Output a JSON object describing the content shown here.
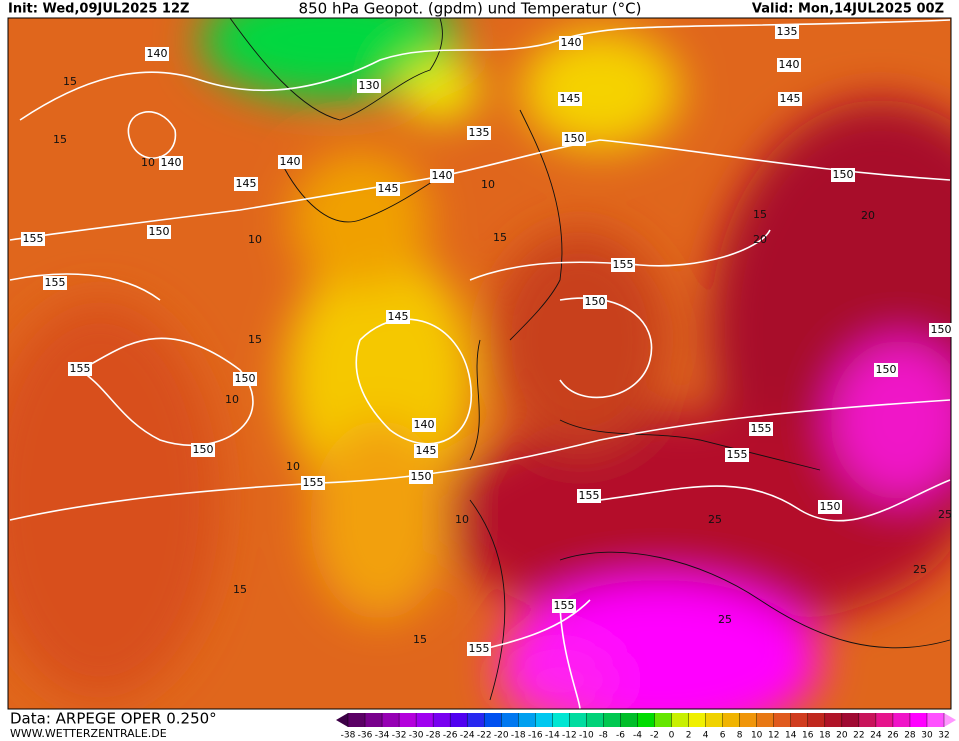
{
  "header": {
    "init": "Init: Wed,09JUL2025 12Z",
    "title": "850 hPa Geopot. (gpdm) und Temperatur (°C)",
    "valid": "Valid: Mon,14JUL2025 00Z"
  },
  "footer": {
    "data": "Data: ARPEGE OPER 0.250°",
    "site": "WWW.WETTERZENTRALE.DE"
  },
  "colorbar": {
    "labels": [
      -38,
      -36,
      -34,
      -32,
      -30,
      -28,
      -26,
      -24,
      -22,
      -20,
      -18,
      -16,
      -14,
      -12,
      -10,
      -8,
      -6,
      -4,
      -2,
      0,
      2,
      4,
      6,
      8,
      10,
      12,
      14,
      16,
      18,
      20,
      22,
      24,
      26,
      28,
      30,
      32
    ],
    "colors": [
      "#3c0046",
      "#5a0064",
      "#78008c",
      "#9600b4",
      "#b400dc",
      "#a000f0",
      "#7800f0",
      "#5000f0",
      "#2828f0",
      "#0050f0",
      "#0078f0",
      "#00a0f0",
      "#00c8f0",
      "#00e6d2",
      "#00dca0",
      "#00d278",
      "#00c850",
      "#00be28",
      "#00dc00",
      "#64e600",
      "#c8f000",
      "#f0f000",
      "#f0d200",
      "#f0b400",
      "#f0960a",
      "#e87814",
      "#e05a1e",
      "#d03c1e",
      "#c0281e",
      "#b01428",
      "#a00a32",
      "#c8145a",
      "#e6148c",
      "#f014c8",
      "#ff00ff",
      "#ff50ff",
      "#ff96ff"
    ]
  },
  "geopotential_labels": [
    140,
    130,
    140,
    135,
    140,
    145,
    145,
    140,
    140,
    135,
    150,
    145,
    145,
    140,
    150,
    150,
    155,
    155,
    155,
    150,
    145,
    150,
    155,
    150,
    150,
    140,
    145,
    150,
    150,
    155,
    155,
    155,
    155,
    150,
    155,
    155
  ],
  "temperature_labels": [
    15,
    10,
    15,
    10,
    15,
    10,
    10,
    15,
    20,
    10,
    15,
    20,
    25,
    25,
    25,
    10,
    15,
    15,
    25
  ]
}
